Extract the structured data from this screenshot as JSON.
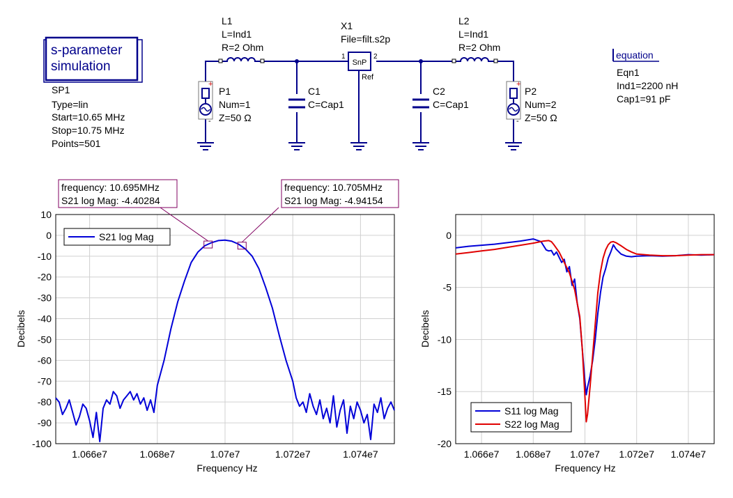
{
  "schematic": {
    "sp_title_line1": "s-parameter",
    "sp_title_line2": "simulation",
    "sp_name": "SP1",
    "sp_type": "Type=lin",
    "sp_start": "Start=10.65 MHz",
    "sp_stop": "Stop=10.75 MHz",
    "sp_points": "Points=501",
    "l1_name": "L1",
    "l1_value": "L=Ind1",
    "l1_r": "R=2 Ohm",
    "l2_name": "L2",
    "l2_value": "L=Ind1",
    "l2_r": "R=2 Ohm",
    "x1_name": "X1",
    "x1_file": "File=filt.s2p",
    "x1_box": "SnP",
    "x1_pin1": "1",
    "x1_pin2": "2",
    "x1_ref": "Ref",
    "c1_name": "C1",
    "c1_value": "C=Cap1",
    "c2_name": "C2",
    "c2_value": "C=Cap1",
    "p1_name": "P1",
    "p1_num": "Num=1",
    "p1_z": "Z=50 Ω",
    "p2_name": "P2",
    "p2_num": "Num=2",
    "p2_z": "Z=50 Ω",
    "plus": "+",
    "minus": "-",
    "eq_title": "equation",
    "eq_name": "Eqn1",
    "eq_ind": "Ind1=2200 nH",
    "eq_cap": "Cap1=91 pF"
  },
  "markers": [
    {
      "freq_label": "frequency: 10.695MHz",
      "value_label": "S21 log Mag: -4.40284",
      "x": 10695000,
      "y": -4.40284
    },
    {
      "freq_label": "frequency: 10.705MHz",
      "value_label": "S21 log Mag: -4.94154",
      "x": 10705000,
      "y": -4.94154
    }
  ],
  "chart_data": [
    {
      "type": "line",
      "xlabel": "Frequency Hz",
      "ylabel": "Decibels",
      "xlim": [
        10650000,
        10750000
      ],
      "ylim": [
        -100,
        10
      ],
      "x_ticks": [
        10660000,
        10680000,
        10700000,
        10720000,
        10740000
      ],
      "x_tick_labels": [
        "1.066e7",
        "1.068e7",
        "1.07e7",
        "1.072e7",
        "1.074e7"
      ],
      "y_ticks": [
        10,
        0,
        -10,
        -20,
        -30,
        -40,
        -50,
        -60,
        -70,
        -80,
        -90,
        -100
      ],
      "y_tick_labels": [
        "10",
        "0",
        "-10",
        "-20",
        "-30",
        "-40",
        "-50",
        "-60",
        "-70",
        "-80",
        "-90",
        "-100"
      ],
      "grid": true,
      "legend": "top-left",
      "series": [
        {
          "name": "S21 log Mag",
          "color": "#0000d8",
          "x": [
            10650000,
            10651000,
            10652000,
            10653000,
            10654000,
            10655000,
            10656000,
            10657000,
            10658000,
            10659000,
            10660000,
            10661000,
            10662000,
            10663000,
            10664000,
            10665000,
            10666000,
            10667000,
            10668000,
            10669000,
            10670000,
            10671000,
            10672000,
            10673000,
            10674000,
            10675000,
            10676000,
            10677000,
            10678000,
            10679000,
            10680000,
            10682000,
            10684000,
            10686000,
            10688000,
            10690000,
            10692000,
            10694000,
            10696000,
            10698000,
            10700000,
            10702000,
            10704000,
            10706000,
            10708000,
            10710000,
            10712000,
            10714000,
            10716000,
            10718000,
            10720000,
            10721000,
            10722000,
            10723000,
            10724000,
            10725000,
            10726000,
            10727000,
            10728000,
            10729000,
            10730000,
            10731000,
            10732000,
            10733000,
            10734000,
            10735000,
            10736000,
            10737000,
            10738000,
            10739000,
            10740000,
            10741000,
            10742000,
            10743000,
            10744000,
            10745000,
            10746000,
            10747000,
            10748000,
            10749000,
            10750000
          ],
          "y": [
            -78,
            -80,
            -86,
            -83,
            -79,
            -85,
            -91,
            -87,
            -81,
            -83,
            -89,
            -97,
            -85,
            -99,
            -83,
            -79,
            -81,
            -75,
            -77,
            -83,
            -79,
            -77,
            -75,
            -79,
            -76,
            -81,
            -78,
            -84,
            -79,
            -85,
            -72,
            -60,
            -45,
            -32,
            -22,
            -13,
            -8,
            -5,
            -3.5,
            -2.5,
            -2.3,
            -2.8,
            -4.2,
            -6.5,
            -10,
            -16,
            -25,
            -35,
            -48,
            -60,
            -70,
            -78,
            -82,
            -80,
            -85,
            -76,
            -82,
            -86,
            -79,
            -88,
            -83,
            -90,
            -77,
            -92,
            -84,
            -79,
            -95,
            -82,
            -88,
            -80,
            -84,
            -90,
            -86,
            -98,
            -81,
            -85,
            -78,
            -88,
            -83,
            -80,
            -84
          ]
        }
      ]
    },
    {
      "type": "line",
      "xlabel": "Frequency Hz",
      "ylabel": "Decibels",
      "xlim": [
        10650000,
        10750000
      ],
      "ylim": [
        -20,
        2
      ],
      "x_ticks": [
        10660000,
        10680000,
        10700000,
        10720000,
        10740000
      ],
      "x_tick_labels": [
        "1.066e7",
        "1.068e7",
        "1.07e7",
        "1.072e7",
        "1.074e7"
      ],
      "y_ticks": [
        0,
        -5,
        -10,
        -15,
        -20
      ],
      "y_tick_labels": [
        "0",
        "-5",
        "-10",
        "-15",
        "-20"
      ],
      "grid": true,
      "legend": "bottom-left",
      "series": [
        {
          "name": "S11 log Mag",
          "color": "#0000d8",
          "x": [
            10650000,
            10655000,
            10660000,
            10665000,
            10670000,
            10675000,
            10680000,
            10683000,
            10685000,
            10686000,
            10687000,
            10688000,
            10689000,
            10690000,
            10691000,
            10692000,
            10693000,
            10694000,
            10695000,
            10696000,
            10697000,
            10698000,
            10699000,
            10700000,
            10700500,
            10701000,
            10702000,
            10703000,
            10704000,
            10705000,
            10706000,
            10707000,
            10708000,
            10709000,
            10710000,
            10711000,
            10712000,
            10714000,
            10716000,
            10718000,
            10720000,
            10725000,
            10730000,
            10735000,
            10740000,
            10745000,
            10750000
          ],
          "y": [
            -1.2,
            -1.05,
            -0.95,
            -0.85,
            -0.7,
            -0.55,
            -0.35,
            -0.6,
            -1.4,
            -1.5,
            -1.45,
            -1.9,
            -1.6,
            -2.1,
            -2.6,
            -2.3,
            -3.5,
            -3.0,
            -4.8,
            -4.2,
            -6.5,
            -8,
            -11,
            -14,
            -15.3,
            -14.6,
            -13.5,
            -12,
            -10,
            -7.5,
            -5.5,
            -4,
            -3.2,
            -2.2,
            -1.6,
            -0.9,
            -1.3,
            -1.8,
            -2.0,
            -2.05,
            -2.0,
            -1.95,
            -2.0,
            -1.95,
            -1.85,
            -1.9,
            -1.85
          ]
        },
        {
          "name": "S22 log Mag",
          "color": "#e00000",
          "x": [
            10650000,
            10655000,
            10660000,
            10665000,
            10670000,
            10675000,
            10680000,
            10684000,
            10686000,
            10687000,
            10688000,
            10690000,
            10692000,
            10694000,
            10696000,
            10698000,
            10699000,
            10700000,
            10700500,
            10701000,
            10702000,
            10703000,
            10704000,
            10705000,
            10706000,
            10707000,
            10708000,
            10709000,
            10710000,
            10711000,
            10712000,
            10714000,
            10716000,
            10718000,
            10720000,
            10725000,
            10730000,
            10735000,
            10740000,
            10745000,
            10750000
          ],
          "y": [
            -1.8,
            -1.65,
            -1.5,
            -1.35,
            -1.15,
            -0.95,
            -0.75,
            -0.55,
            -0.5,
            -0.6,
            -0.9,
            -1.6,
            -2.6,
            -3.6,
            -5.2,
            -7.8,
            -11,
            -15.5,
            -17.9,
            -17.2,
            -14.5,
            -11.5,
            -8.5,
            -5.5,
            -3.5,
            -2.2,
            -1.4,
            -0.9,
            -0.65,
            -0.6,
            -0.7,
            -1.0,
            -1.35,
            -1.6,
            -1.8,
            -1.9,
            -1.95,
            -1.95,
            -1.9,
            -1.85,
            -1.85
          ]
        }
      ]
    }
  ]
}
